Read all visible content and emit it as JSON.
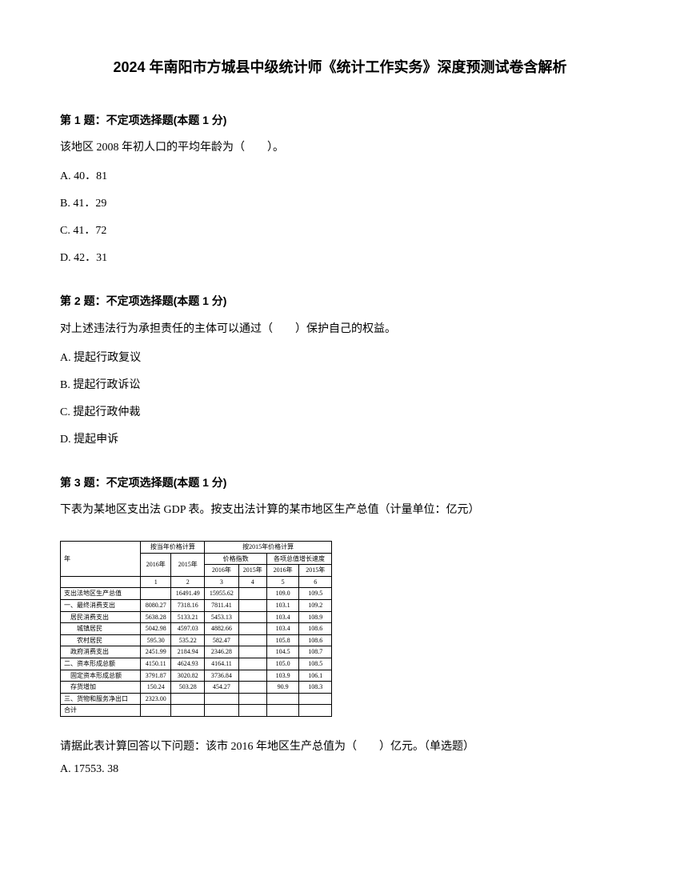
{
  "title": "2024 年南阳市方城县中级统计师《统计工作实务》深度预测试卷含解析",
  "q1": {
    "header": "第 1 题：不定项选择题(本题 1 分)",
    "text": "该地区 2008 年初人口的平均年龄为（　　）。",
    "optA": "A. 40．81",
    "optB": "B. 41．29",
    "optC": "C. 41．72",
    "optD": "D. 42．31"
  },
  "q2": {
    "header": "第 2 题：不定项选择题(本题 1 分)",
    "text": "对上述违法行为承担责任的主体可以通过（　　）保护自己的权益。",
    "optA": "A. 提起行政复议",
    "optB": "B. 提起行政诉讼",
    "optC": "C. 提起行政仲裁",
    "optD": "D. 提起申诉"
  },
  "q3": {
    "header": "第 3 题：不定项选择题(本题 1 分)",
    "text": "下表为某地区支出法 GDP 表。按支出法计算的某市地区生产总值（计量单位：亿元）",
    "subQuestion": "请据此表计算回答以下问题：该市 2016 年地区生产总值为（　　）亿元。（单选题）",
    "optA": "A. 17553. 38",
    "table": {
      "h1": "按当年价格计算",
      "h2": "按2015年价格计算",
      "y2016": "2016年",
      "y2015": "2015年",
      "idx": "价格指数",
      "gdp": "各项总值增长速度",
      "col1": "1",
      "col2": "2",
      "col3": "3",
      "col4": "4",
      "col5": "5",
      "col6": "6",
      "rowLabel1": "支出法地区生产总值",
      "rowLabel2": "一、最终消费支出",
      "rowLabel3": "　居民消费支出",
      "rowLabel4": "　　城镇居民",
      "rowLabel5": "　　农村居民",
      "rowLabel6": "　政府消费支出",
      "rowLabel7": "二、资本形成总额",
      "rowLabel8": "　固定资本形成总额",
      "rowLabel9": "　存货增加",
      "rowLabel10": "三、货物和服务净出口",
      "rowLabel11": "合计",
      "r1": [
        "",
        "16491.49",
        "15955.62",
        "",
        "109.0",
        "109.5"
      ],
      "r2": [
        "8080.27",
        "7318.16",
        "7811.41",
        "",
        "103.1",
        "109.2"
      ],
      "r3": [
        "5638.28",
        "5133.21",
        "5453.13",
        "",
        "103.4",
        "108.9"
      ],
      "r4": [
        "5042.98",
        "4597.03",
        "4882.66",
        "",
        "103.4",
        "108.6"
      ],
      "r5": [
        "595.30",
        "535.22",
        "582.47",
        "",
        "105.8",
        "108.6"
      ],
      "r6": [
        "2451.99",
        "2184.94",
        "2346.28",
        "",
        "104.5",
        "108.7"
      ],
      "r7": [
        "4150.11",
        "4624.93",
        "4164.11",
        "",
        "105.0",
        "108.5"
      ],
      "r8": [
        "3791.87",
        "3020.82",
        "3736.84",
        "",
        "103.9",
        "106.1"
      ],
      "r9": [
        "150.24",
        "503.28",
        "454.27",
        "",
        "90.9",
        "108.3"
      ],
      "r10": [
        "2323.00",
        "",
        "",
        "",
        "",
        ""
      ],
      "r11": [
        "",
        "",
        "",
        "",
        "",
        ""
      ]
    }
  }
}
